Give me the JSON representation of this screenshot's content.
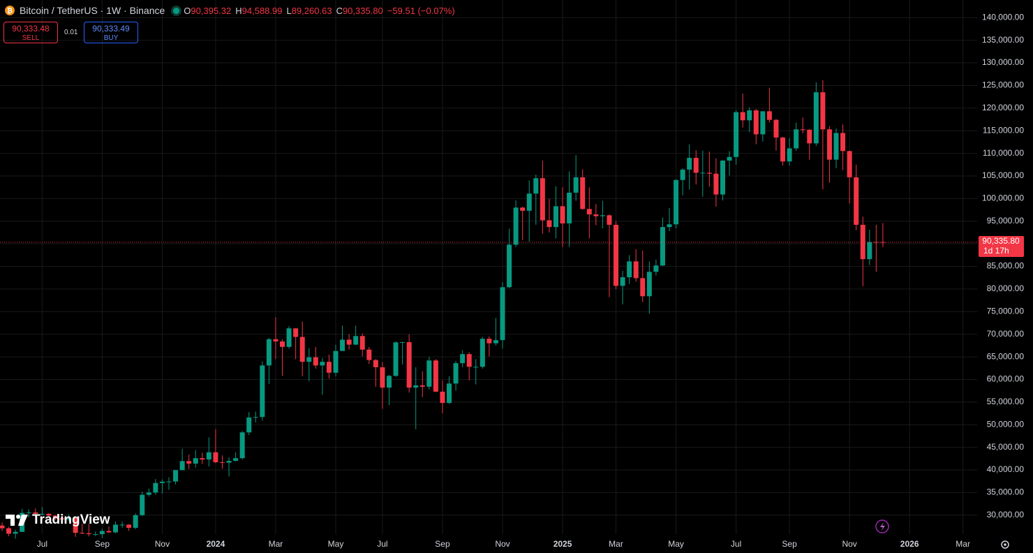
{
  "header": {
    "symbol": "Bitcoin / TetherUS · 1W · Binance",
    "o_label": "O",
    "open": "90,395.32",
    "h_label": "H",
    "high": "94,588.99",
    "l_label": "L",
    "low": "89,260.63",
    "c_label": "C",
    "close": "90,335.80",
    "change": "−59.51 (−0.07%)"
  },
  "trade": {
    "sell_price": "90,333.48",
    "sell_label": "SELL",
    "spread": "0.01",
    "buy_price": "90,333.49",
    "buy_label": "BUY"
  },
  "watermark": "TradingView",
  "chart_data": {
    "type": "candlestick",
    "up_color": "#089981",
    "down_color": "#f23645",
    "last_price_label": "90,335.80",
    "countdown": "1d 17h",
    "categories": [
      null,
      null,
      null,
      null,
      null,
      null,
      "Jul",
      null,
      null,
      null,
      null,
      null,
      null,
      null,
      null,
      "Sep",
      null,
      null,
      null,
      null,
      null,
      null,
      null,
      null,
      "Nov",
      null,
      null,
      null,
      null,
      null,
      null,
      null,
      "2024",
      null,
      null,
      null,
      null,
      null,
      null,
      null,
      null,
      "Mar",
      null,
      null,
      null,
      null,
      null,
      null,
      null,
      null,
      "May",
      null,
      null,
      null,
      null,
      null,
      null,
      "Jul",
      null,
      null,
      null,
      null,
      null,
      null,
      null,
      null,
      "Sep",
      null,
      null,
      null,
      null,
      null,
      null,
      null,
      null,
      "Nov",
      null,
      null,
      null,
      null,
      null,
      null,
      null,
      null,
      "2025",
      null,
      null,
      null,
      null,
      null,
      null,
      null,
      "Mar",
      null,
      null,
      null,
      null,
      null,
      null,
      null,
      null,
      "May",
      null,
      null,
      null,
      null,
      null,
      null,
      null,
      null,
      "Jul",
      null,
      null,
      null,
      null,
      null,
      null,
      null,
      "Sep",
      null,
      null,
      null,
      null,
      null,
      null,
      null,
      null,
      "Nov",
      null,
      null,
      null,
      null,
      null,
      null,
      null,
      null,
      "2026",
      null,
      null,
      null,
      null,
      null,
      null,
      null,
      "Mar"
    ],
    "open": [
      27700,
      27100,
      25900,
      26300,
      30500,
      30600,
      30300,
      30300,
      29900,
      29300,
      29050,
      29400,
      26100,
      26000,
      25800,
      25800,
      26500,
      26200,
      27900,
      27900,
      27200,
      30000,
      34500,
      35000,
      37100,
      37400,
      37450,
      39950,
      41950,
      41400,
      42600,
      42300,
      43900,
      41700,
      41600,
      42000,
      42600,
      48300,
      51600,
      51700,
      63100,
      68900,
      68400,
      67200,
      71300,
      69400,
      63900,
      64900,
      63100,
      63900,
      61500,
      66300,
      68800,
      67700,
      69600,
      66600,
      64300,
      62700,
      58200,
      60800,
      68200,
      68250,
      58200,
      58700,
      58400,
      64200,
      57300,
      54800,
      59100,
      63600,
      65600,
      62800,
      62800,
      69000,
      68000,
      68700,
      80400,
      89800,
      98000,
      97300,
      101100,
      104500,
      95200,
      93700,
      98300,
      94500,
      101300,
      104700,
      97700,
      96500,
      96100,
      96300,
      94200,
      80700,
      82600,
      86100,
      82400,
      78400,
      83800,
      85200,
      93700,
      94300,
      104100,
      106400,
      109000,
      105700,
      105700,
      105500,
      100900,
      108400,
      109200,
      119100,
      117300,
      119500,
      114200,
      119300,
      117400,
      113500,
      108200,
      111100,
      115300,
      115200,
      112200,
      123500,
      115300,
      108600,
      114500,
      110500,
      104700,
      94200,
      86600,
      90400,
      90395.32,
      null,
      null,
      null,
      null,
      null,
      null,
      null,
      null,
      null,
      null,
      null,
      null
    ],
    "high": [
      28400,
      27400,
      26800,
      31400,
      31300,
      31500,
      31800,
      30400,
      29990,
      30000,
      30200,
      29700,
      28100,
      28100,
      26400,
      27000,
      27500,
      28600,
      28600,
      28000,
      30400,
      35200,
      35900,
      38000,
      37900,
      38400,
      40000,
      44700,
      43400,
      44400,
      43800,
      47200,
      49000,
      43200,
      42800,
      43900,
      48600,
      52800,
      52900,
      64000,
      69200,
      73800,
      68900,
      71800,
      71300,
      72800,
      66900,
      67200,
      64700,
      65500,
      67700,
      71900,
      70000,
      71900,
      70200,
      67200,
      64500,
      63800,
      61000,
      68400,
      68300,
      70000,
      62700,
      61800,
      65000,
      64500,
      59800,
      60700,
      64100,
      66500,
      66000,
      64500,
      69400,
      69500,
      73600,
      81500,
      93300,
      99600,
      98200,
      104000,
      105300,
      108400,
      99900,
      102700,
      102500,
      106000,
      109600,
      106500,
      102500,
      98800,
      99500,
      96500,
      95000,
      84000,
      87500,
      88800,
      88500,
      86100,
      86500,
      95800,
      97900,
      104300,
      106700,
      112000,
      110700,
      110600,
      110400,
      108900,
      108500,
      110500,
      119500,
      123200,
      120200,
      119800,
      119300,
      124500,
      117600,
      113600,
      113400,
      116800,
      117900,
      115400,
      125700,
      126200,
      116000,
      115500,
      116400,
      110600,
      107500,
      96000,
      93100,
      94200,
      94588.99,
      null,
      null,
      null,
      null,
      null,
      null,
      null,
      null,
      null,
      null,
      null,
      null
    ],
    "low": [
      26500,
      25350,
      24800,
      26250,
      29500,
      29700,
      29950,
      29500,
      28900,
      28600,
      28700,
      25200,
      25800,
      25300,
      25400,
      24900,
      26000,
      26000,
      27200,
      26500,
      26900,
      29800,
      34100,
      34500,
      34800,
      35600,
      36800,
      39950,
      40200,
      40500,
      41300,
      40750,
      41500,
      40300,
      38550,
      41900,
      42300,
      47700,
      50500,
      50900,
      59000,
      64500,
      60800,
      66800,
      64500,
      60700,
      59600,
      62400,
      56600,
      60200,
      60700,
      66300,
      66600,
      67600,
      65100,
      63400,
      58400,
      53500,
      54300,
      60600,
      63300,
      57100,
      49000,
      56100,
      57800,
      57200,
      52500,
      54600,
      57500,
      62700,
      59800,
      58900,
      62400,
      65100,
      67500,
      66800,
      80200,
      89300,
      90800,
      90500,
      94200,
      92200,
      92500,
      91200,
      89300,
      89300,
      99500,
      97500,
      91200,
      94100,
      93400,
      78200,
      80000,
      76600,
      81100,
      81600,
      77100,
      74500,
      83000,
      85100,
      92800,
      93400,
      100700,
      102000,
      103100,
      100400,
      102600,
      98200,
      99600,
      105100,
      107500,
      115700,
      114700,
      112000,
      112600,
      116800,
      110600,
      107300,
      107300,
      110600,
      114400,
      108600,
      111600,
      102000,
      103500,
      106700,
      106300,
      98900,
      93000,
      80600,
      85300,
      83800,
      89260.63,
      null,
      null,
      null,
      null,
      null,
      null,
      null,
      null,
      null,
      null,
      null,
      null
    ],
    "close": [
      27100,
      25900,
      26300,
      30500,
      30600,
      30300,
      30300,
      29900,
      29300,
      29050,
      29400,
      26100,
      26000,
      25800,
      25800,
      26500,
      26200,
      27900,
      27900,
      27200,
      30000,
      34500,
      35000,
      37100,
      37400,
      37450,
      39950,
      41950,
      41400,
      42600,
      42300,
      43900,
      41700,
      41600,
      42000,
      42600,
      48300,
      51600,
      51700,
      63100,
      68900,
      68400,
      67200,
      71300,
      69400,
      63900,
      64900,
      63100,
      63900,
      61500,
      66300,
      68800,
      67700,
      69600,
      66600,
      64300,
      62700,
      58200,
      60800,
      68200,
      68250,
      58200,
      58700,
      58400,
      64200,
      57300,
      54800,
      59100,
      63600,
      65600,
      62800,
      62800,
      69000,
      68000,
      68700,
      80400,
      89800,
      98000,
      97300,
      101100,
      104500,
      95200,
      93700,
      98300,
      94500,
      101300,
      104700,
      97700,
      96500,
      96100,
      96300,
      94200,
      80700,
      82600,
      86100,
      82400,
      78400,
      83800,
      85200,
      93700,
      94300,
      104100,
      106400,
      109000,
      105700,
      105700,
      105500,
      100900,
      108400,
      109200,
      119100,
      117300,
      119500,
      114200,
      119300,
      117400,
      113500,
      108200,
      111100,
      115300,
      115200,
      112200,
      123500,
      115300,
      108600,
      114500,
      110500,
      104700,
      94200,
      86600,
      90400,
      90395.31,
      90335.8,
      null,
      null,
      null,
      null,
      null,
      null,
      null,
      null,
      null,
      null,
      null,
      null
    ],
    "ylim": [
      25800,
      143900
    ],
    "yticks": [
      {
        "value": 30000,
        "label": "30,000.00"
      },
      {
        "value": 35000,
        "label": "35,000.00"
      },
      {
        "value": 40000,
        "label": "40,000.00"
      },
      {
        "value": 45000,
        "label": "45,000.00"
      },
      {
        "value": 50000,
        "label": "50,000.00"
      },
      {
        "value": 55000,
        "label": "55,000.00"
      },
      {
        "value": 60000,
        "label": "60,000.00"
      },
      {
        "value": 65000,
        "label": "65,000.00"
      },
      {
        "value": 70000,
        "label": "70,000.00"
      },
      {
        "value": 75000,
        "label": "75,000.00"
      },
      {
        "value": 80000,
        "label": "80,000.00"
      },
      {
        "value": 85000,
        "label": "85,000.00"
      },
      {
        "value": 90000,
        "label": "90,000.00"
      },
      {
        "value": 95000,
        "label": "95,000.00"
      },
      {
        "value": 100000,
        "label": "100,000.00"
      },
      {
        "value": 105000,
        "label": "105,000.00"
      },
      {
        "value": 110000,
        "label": "110,000.00"
      },
      {
        "value": 115000,
        "label": "115,000.00"
      },
      {
        "value": 120000,
        "label": "120,000.00"
      },
      {
        "value": 125000,
        "label": "125,000.00"
      },
      {
        "value": 130000,
        "label": "130,000.00"
      },
      {
        "value": 135000,
        "label": "135,000.00"
      },
      {
        "value": 140000,
        "label": "140,000.00"
      }
    ],
    "grid": true
  }
}
